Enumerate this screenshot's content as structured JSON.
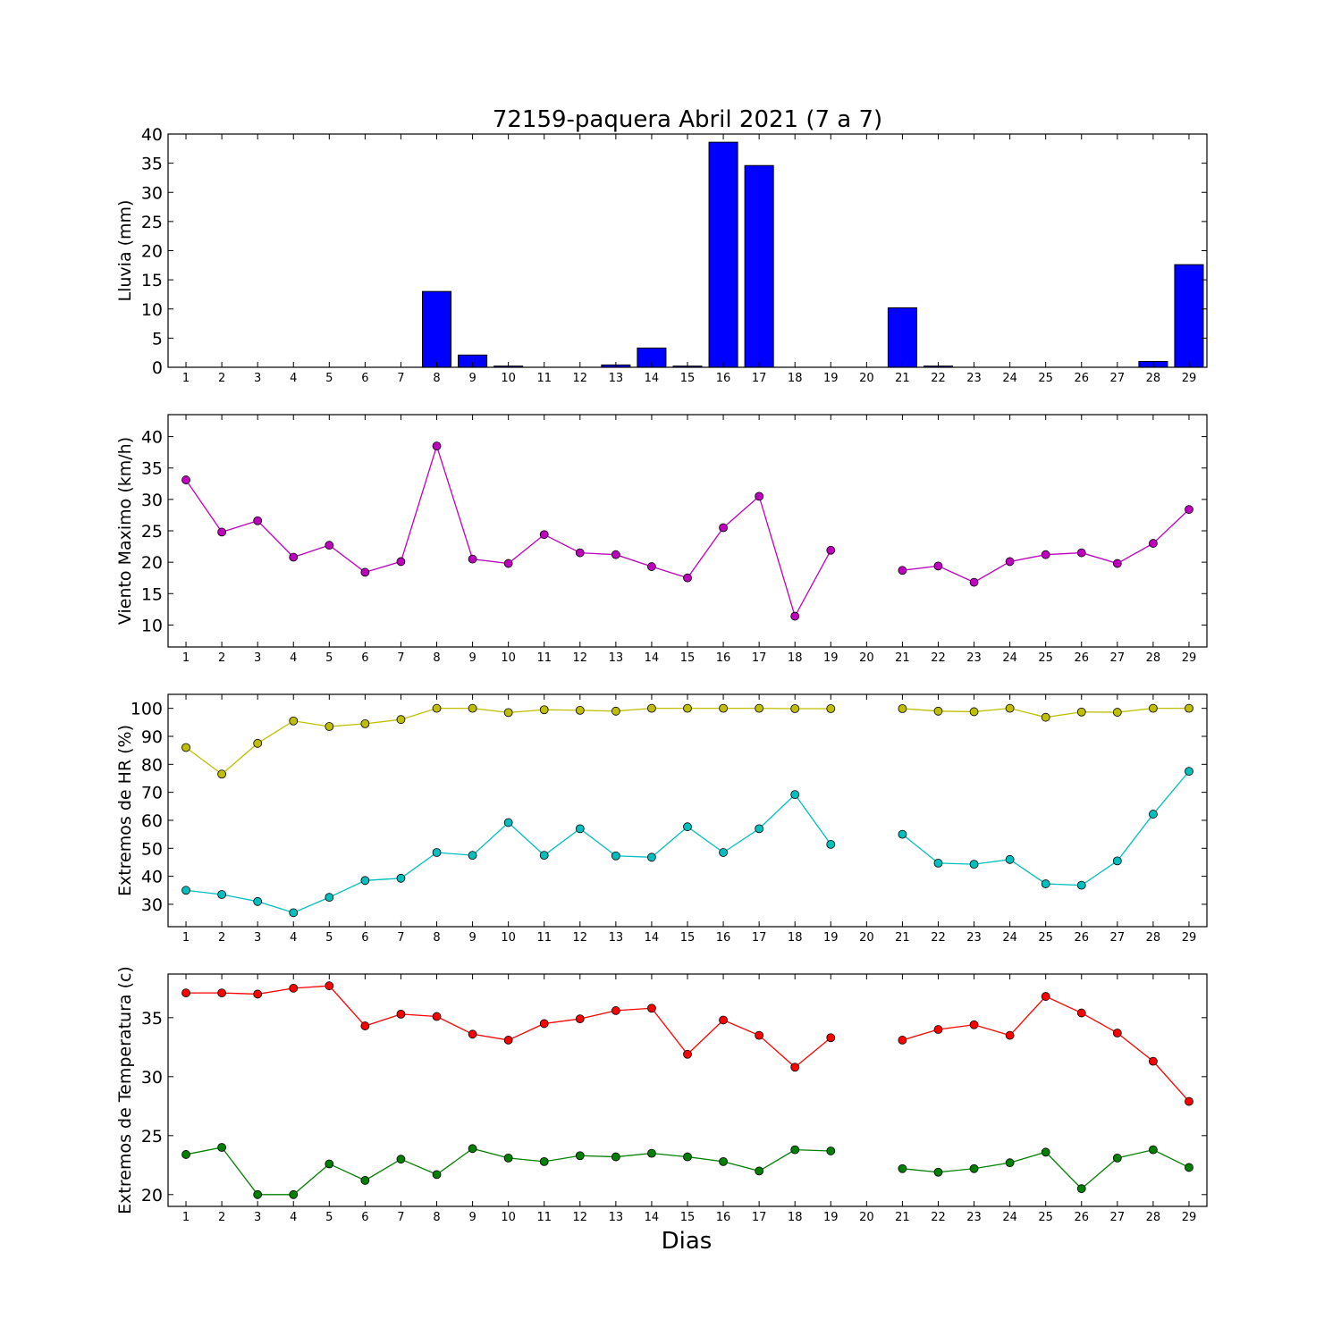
{
  "chart_data": [
    {
      "type": "bar",
      "title": "72159-paquera Abril 2021  (7 a 7)",
      "ylabel": "Lluvia (mm)",
      "xlabel": "",
      "ylim": [
        0,
        40
      ],
      "yticks": [
        0,
        5,
        10,
        15,
        20,
        25,
        30,
        35,
        40
      ],
      "categories": [
        1,
        2,
        3,
        4,
        5,
        6,
        7,
        8,
        9,
        10,
        11,
        12,
        13,
        14,
        15,
        16,
        17,
        18,
        19,
        20,
        21,
        22,
        23,
        24,
        25,
        26,
        27,
        28,
        29
      ],
      "values": [
        0,
        0,
        0,
        0,
        0,
        0,
        0,
        13,
        2.1,
        0.2,
        0,
        0,
        0.4,
        3.3,
        0.2,
        38.6,
        34.6,
        0,
        0,
        null,
        10.2,
        0.2,
        0,
        0,
        0,
        0,
        0,
        1.0,
        17.6
      ],
      "bar_color": "#0000ff",
      "grid": false
    },
    {
      "type": "line",
      "title": "",
      "ylabel": "Viento Maximo (km/h)",
      "xlabel": "",
      "ylim": [
        6.5,
        43.5
      ],
      "yticks": [
        10,
        15,
        20,
        25,
        30,
        35,
        40
      ],
      "categories": [
        1,
        2,
        3,
        4,
        5,
        6,
        7,
        8,
        9,
        10,
        11,
        12,
        13,
        14,
        15,
        16,
        17,
        18,
        19,
        20,
        21,
        22,
        23,
        24,
        25,
        26,
        27,
        28,
        29
      ],
      "series": [
        {
          "color": "#bf00bf",
          "values": [
            33.1,
            24.8,
            26.6,
            20.8,
            22.7,
            18.4,
            20.1,
            38.5,
            20.5,
            19.8,
            24.4,
            21.5,
            21.2,
            19.3,
            17.5,
            25.5,
            30.5,
            11.4,
            21.9,
            null,
            18.7,
            19.4,
            16.8,
            20.1,
            21.2,
            21.5,
            19.8,
            23.0,
            28.4
          ]
        }
      ],
      "grid": false
    },
    {
      "type": "line",
      "title": "",
      "ylabel": "Extremos de HR (%)",
      "xlabel": "",
      "ylim": [
        22,
        105
      ],
      "yticks": [
        30,
        40,
        50,
        60,
        70,
        80,
        90,
        100
      ],
      "categories": [
        1,
        2,
        3,
        4,
        5,
        6,
        7,
        8,
        9,
        10,
        11,
        12,
        13,
        14,
        15,
        16,
        17,
        18,
        19,
        20,
        21,
        22,
        23,
        24,
        25,
        26,
        27,
        28,
        29
      ],
      "series": [
        {
          "color": "#bfbf00",
          "values": [
            86,
            76.5,
            87.5,
            95.5,
            93.5,
            94.5,
            96,
            100,
            100,
            98.5,
            99.5,
            99.3,
            99,
            100,
            100,
            100,
            100,
            99.9,
            99.9,
            null,
            99.9,
            99,
            98.8,
            100,
            96.8,
            98.7,
            98.6,
            100,
            100
          ]
        },
        {
          "color": "#00bfbf",
          "values": [
            35,
            33.5,
            31,
            27,
            32.5,
            38.5,
            39.3,
            48.5,
            47.5,
            59.2,
            47.5,
            57,
            47.3,
            46.8,
            57.7,
            48.5,
            57,
            69.2,
            51.4,
            null,
            55,
            44.7,
            44.3,
            46,
            37.3,
            36.8,
            45.5,
            62.2,
            77.5
          ]
        }
      ],
      "grid": false
    },
    {
      "type": "line",
      "title": "",
      "ylabel": "Extremos de Temperatura (c)",
      "xlabel": "Dias",
      "ylim": [
        19,
        38.7
      ],
      "yticks": [
        20,
        25,
        30,
        35
      ],
      "categories": [
        1,
        2,
        3,
        4,
        5,
        6,
        7,
        8,
        9,
        10,
        11,
        12,
        13,
        14,
        15,
        16,
        17,
        18,
        19,
        20,
        21,
        22,
        23,
        24,
        25,
        26,
        27,
        28,
        29
      ],
      "series": [
        {
          "color": "#ff0000",
          "values": [
            37.1,
            37.1,
            37.0,
            37.5,
            37.7,
            34.3,
            35.3,
            35.1,
            33.6,
            33.1,
            34.5,
            34.9,
            35.6,
            35.8,
            31.9,
            34.8,
            33.5,
            30.8,
            33.3,
            null,
            33.1,
            34.0,
            34.4,
            33.5,
            36.8,
            35.4,
            33.7,
            31.3,
            27.9
          ]
        },
        {
          "color": "#008000",
          "values": [
            23.4,
            24.0,
            20.0,
            20.0,
            22.6,
            21.2,
            23.0,
            21.7,
            23.9,
            23.1,
            22.8,
            23.3,
            23.2,
            23.5,
            23.2,
            22.8,
            22.0,
            23.8,
            23.7,
            null,
            22.2,
            21.9,
            22.2,
            22.7,
            23.6,
            20.5,
            23.1,
            23.8,
            22.3
          ]
        }
      ],
      "grid": false
    }
  ]
}
